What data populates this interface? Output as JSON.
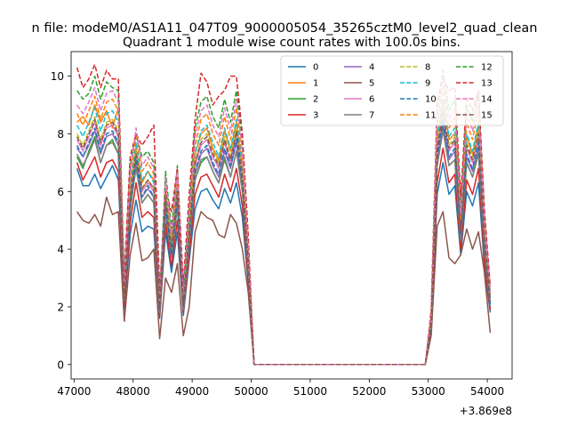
{
  "suptitle": "n file: modeM0/AS1A11_047T09_9000005054_35265cztM0_level2_quad_clean",
  "chart_data": {
    "type": "line",
    "title": "Quadrant 1 module wise count rates with 100.0s bins.",
    "xlabel": "",
    "ylabel": "",
    "offset_text": "+3.869e8",
    "xlim": [
      46950,
      54420
    ],
    "ylim": [
      -0.5,
      10.85
    ],
    "xticks": [
      47000,
      48000,
      49000,
      50000,
      51000,
      52000,
      53000,
      54000
    ],
    "yticks": [
      0,
      2,
      4,
      6,
      8,
      10
    ],
    "grid": false,
    "legend": {
      "placement": "top-right",
      "columns": 4
    },
    "x": [
      47050,
      47150,
      47250,
      47350,
      47450,
      47550,
      47650,
      47750,
      47850,
      47950,
      48050,
      48150,
      48250,
      48350,
      48450,
      48550,
      48650,
      48750,
      48850,
      48950,
      49050,
      49150,
      49250,
      49350,
      49450,
      49550,
      49650,
      49750,
      49850,
      49950,
      50050,
      50150,
      50250,
      50350,
      50450,
      50550,
      50650,
      50750,
      50850,
      50950,
      51050,
      51150,
      51250,
      51350,
      51450,
      51550,
      51650,
      51750,
      51850,
      51950,
      52050,
      52150,
      52250,
      52350,
      52450,
      52550,
      52650,
      52750,
      52850,
      52950,
      53050,
      53150,
      53250,
      53350,
      53450,
      53550,
      53650,
      53750,
      53850,
      53950,
      54050
    ],
    "series": [
      {
        "name": "0",
        "color": "#1f77b4",
        "dash": false,
        "values": [
          6.8,
          6.2,
          6.2,
          6.6,
          6.1,
          6.5,
          6.9,
          6.4,
          1.9,
          4.5,
          5.7,
          4.6,
          4.8,
          4.7,
          1.6,
          4.6,
          3.2,
          4.6,
          1.7,
          3.6,
          5.4,
          6.0,
          6.1,
          5.7,
          5.4,
          6.1,
          5.6,
          6.3,
          5.1,
          2.8,
          0,
          0,
          0,
          0,
          0,
          0,
          0,
          0,
          0,
          0,
          0,
          0,
          0,
          0,
          0,
          0,
          0,
          0,
          0,
          0,
          0,
          0,
          0,
          0,
          0,
          0,
          0,
          0,
          0,
          0,
          1.2,
          5.9,
          7.0,
          5.9,
          6.2,
          3.8,
          6.0,
          5.5,
          6.3,
          3.4,
          1.8
        ]
      },
      {
        "name": "1",
        "color": "#ff7f0e",
        "dash": false,
        "values": [
          8.4,
          8.6,
          8.3,
          9.0,
          8.4,
          8.8,
          8.2,
          8.9,
          2.4,
          6.1,
          7.5,
          6.3,
          6.7,
          6.4,
          2.0,
          6.0,
          4.1,
          6.3,
          2.2,
          4.8,
          7.3,
          8.0,
          8.2,
          7.5,
          7.1,
          8.1,
          7.4,
          8.4,
          6.8,
          3.8,
          0,
          0,
          0,
          0,
          0,
          0,
          0,
          0,
          0,
          0,
          0,
          0,
          0,
          0,
          0,
          0,
          0,
          0,
          0,
          0,
          0,
          0,
          0,
          0,
          0,
          0,
          0,
          0,
          0,
          0,
          1.6,
          7.8,
          9.2,
          7.8,
          8.0,
          4.9,
          7.9,
          7.3,
          8.3,
          4.5,
          2.3
        ]
      },
      {
        "name": "2",
        "color": "#2ca02c",
        "dash": false,
        "values": [
          7.2,
          6.8,
          7.4,
          7.9,
          7.0,
          7.6,
          7.8,
          7.3,
          2.2,
          5.3,
          6.9,
          5.6,
          5.9,
          5.6,
          1.8,
          5.3,
          3.7,
          5.5,
          1.9,
          4.2,
          6.4,
          7.0,
          7.2,
          6.7,
          6.3,
          7.1,
          6.5,
          7.4,
          6.0,
          3.3,
          0,
          0,
          0,
          0,
          0,
          0,
          0,
          0,
          0,
          0,
          0,
          0,
          0,
          0,
          0,
          0,
          0,
          0,
          0,
          0,
          0,
          0,
          0,
          0,
          0,
          0,
          0,
          0,
          0,
          0,
          1.4,
          6.9,
          8.2,
          6.9,
          7.1,
          4.3,
          7.0,
          6.5,
          7.4,
          4.0,
          2.0
        ]
      },
      {
        "name": "3",
        "color": "#d62728",
        "dash": false,
        "values": [
          7.0,
          6.4,
          6.8,
          7.2,
          6.5,
          7.0,
          7.1,
          6.7,
          2.0,
          4.9,
          6.3,
          5.1,
          5.3,
          5.1,
          1.7,
          4.9,
          3.4,
          5.0,
          1.8,
          3.8,
          5.9,
          6.5,
          6.6,
          6.2,
          5.8,
          6.6,
          6.0,
          6.8,
          5.5,
          3.0,
          0,
          0,
          0,
          0,
          0,
          0,
          0,
          0,
          0,
          0,
          0,
          0,
          0,
          0,
          0,
          0,
          0,
          0,
          0,
          0,
          0,
          0,
          0,
          0,
          0,
          0,
          0,
          0,
          0,
          0,
          1.3,
          6.3,
          7.5,
          6.3,
          6.6,
          4.0,
          6.4,
          5.9,
          6.8,
          3.6,
          1.9
        ]
      },
      {
        "name": "4",
        "color": "#9467bd",
        "dash": false,
        "values": [
          7.5,
          7.2,
          7.6,
          8.1,
          7.3,
          7.9,
          8.0,
          7.6,
          2.3,
          5.6,
          7.0,
          5.8,
          6.1,
          5.8,
          1.9,
          5.5,
          3.8,
          5.7,
          2.0,
          4.3,
          6.6,
          7.3,
          7.5,
          6.9,
          6.5,
          7.4,
          6.8,
          7.7,
          6.2,
          3.4,
          0,
          0,
          0,
          0,
          0,
          0,
          0,
          0,
          0,
          0,
          0,
          0,
          0,
          0,
          0,
          0,
          0,
          0,
          0,
          0,
          0,
          0,
          0,
          0,
          0,
          0,
          0,
          0,
          0,
          0,
          1.4,
          7.1,
          8.4,
          7.1,
          7.4,
          4.4,
          7.2,
          6.7,
          7.6,
          4.1,
          2.1
        ]
      },
      {
        "name": "5",
        "color": "#8c564b",
        "dash": false,
        "values": [
          5.3,
          5.0,
          4.9,
          5.2,
          4.8,
          5.8,
          5.2,
          5.3,
          1.5,
          3.8,
          4.9,
          3.6,
          3.7,
          4.0,
          0.9,
          3.0,
          2.5,
          3.5,
          1.0,
          2.0,
          4.6,
          5.3,
          5.1,
          5.0,
          4.5,
          4.4,
          5.2,
          4.9,
          4.0,
          2.5,
          0,
          0,
          0,
          0,
          0,
          0,
          0,
          0,
          0,
          0,
          0,
          0,
          0,
          0,
          0,
          0,
          0,
          0,
          0,
          0,
          0,
          0,
          0,
          0,
          0,
          0,
          0,
          0,
          0,
          0,
          1.0,
          4.8,
          5.3,
          3.7,
          3.5,
          3.8,
          4.7,
          4.0,
          4.6,
          3.2,
          1.1
        ]
      },
      {
        "name": "6",
        "color": "#e377c2",
        "dash": false,
        "values": [
          7.8,
          7.4,
          7.9,
          8.4,
          7.6,
          8.2,
          8.3,
          7.9,
          2.3,
          5.8,
          7.2,
          6.0,
          6.3,
          6.0,
          1.9,
          5.7,
          3.9,
          5.9,
          2.1,
          4.5,
          6.9,
          7.6,
          7.8,
          7.2,
          6.8,
          7.7,
          7.0,
          8.0,
          6.5,
          3.5,
          0,
          0,
          0,
          0,
          0,
          0,
          0,
          0,
          0,
          0,
          0,
          0,
          0,
          0,
          0,
          0,
          0,
          0,
          0,
          0,
          0,
          0,
          0,
          0,
          0,
          0,
          0,
          0,
          0,
          0,
          1.5,
          7.4,
          8.7,
          7.4,
          7.7,
          4.6,
          7.5,
          7.0,
          7.9,
          4.3,
          2.2
        ]
      },
      {
        "name": "7",
        "color": "#7f7f7f",
        "dash": false,
        "values": [
          7.3,
          6.9,
          7.3,
          7.8,
          7.0,
          7.6,
          7.7,
          7.3,
          2.2,
          5.4,
          6.8,
          5.6,
          5.9,
          5.6,
          1.8,
          5.3,
          3.7,
          5.5,
          1.9,
          4.2,
          6.4,
          7.1,
          7.2,
          6.7,
          6.3,
          7.2,
          6.5,
          7.4,
          6.0,
          3.3,
          0,
          0,
          0,
          0,
          0,
          0,
          0,
          0,
          0,
          0,
          0,
          0,
          0,
          0,
          0,
          0,
          0,
          0,
          0,
          0,
          0,
          0,
          0,
          0,
          0,
          0,
          0,
          0,
          0,
          0,
          1.4,
          6.9,
          8.1,
          6.9,
          7.1,
          4.3,
          7.0,
          6.5,
          7.3,
          4.0,
          2.0
        ]
      },
      {
        "name": "8",
        "color": "#bcbd22",
        "dash": true,
        "values": [
          8.0,
          7.6,
          8.1,
          8.6,
          7.8,
          8.4,
          8.5,
          8.1,
          2.4,
          5.9,
          7.4,
          6.1,
          6.4,
          6.1,
          2.0,
          5.8,
          4.0,
          6.0,
          2.1,
          4.6,
          7.0,
          7.8,
          8.0,
          7.4,
          7.0,
          7.9,
          7.2,
          8.2,
          6.6,
          3.6,
          0,
          0,
          0,
          0,
          0,
          0,
          0,
          0,
          0,
          0,
          0,
          0,
          0,
          0,
          0,
          0,
          0,
          0,
          0,
          0,
          0,
          0,
          0,
          0,
          0,
          0,
          0,
          0,
          0,
          0,
          1.5,
          7.6,
          8.9,
          7.6,
          7.9,
          4.7,
          7.7,
          7.2,
          8.1,
          4.4,
          2.2
        ]
      },
      {
        "name": "9",
        "color": "#17becf",
        "dash": true,
        "values": [
          8.3,
          7.9,
          8.4,
          8.9,
          8.1,
          8.7,
          8.8,
          8.4,
          2.5,
          6.1,
          7.7,
          6.4,
          6.7,
          6.3,
          2.0,
          6.0,
          4.2,
          6.2,
          2.2,
          4.8,
          7.3,
          8.1,
          8.3,
          7.7,
          7.2,
          8.2,
          7.5,
          8.5,
          6.9,
          3.7,
          0,
          0,
          0,
          0,
          0,
          0,
          0,
          0,
          0,
          0,
          0,
          0,
          0,
          0,
          0,
          0,
          0,
          0,
          0,
          0,
          0,
          0,
          0,
          0,
          0,
          0,
          0,
          0,
          0,
          0,
          1.6,
          7.9,
          9.2,
          7.9,
          8.2,
          4.8,
          8.0,
          7.4,
          8.4,
          4.6,
          2.3
        ]
      },
      {
        "name": "10",
        "color": "#1f77b4",
        "dash": true,
        "values": [
          7.6,
          7.2,
          7.7,
          8.2,
          7.4,
          8.0,
          8.1,
          7.7,
          2.3,
          5.6,
          7.1,
          5.8,
          6.2,
          5.8,
          1.9,
          5.5,
          3.8,
          5.7,
          2.0,
          4.4,
          6.7,
          7.4,
          7.6,
          7.0,
          6.6,
          7.5,
          6.9,
          7.8,
          6.3,
          3.4,
          0,
          0,
          0,
          0,
          0,
          0,
          0,
          0,
          0,
          0,
          0,
          0,
          0,
          0,
          0,
          0,
          0,
          0,
          0,
          0,
          0,
          0,
          0,
          0,
          0,
          0,
          0,
          0,
          0,
          0,
          1.4,
          7.2,
          8.5,
          7.2,
          7.5,
          4.5,
          7.3,
          6.8,
          7.7,
          4.2,
          2.1
        ]
      },
      {
        "name": "11",
        "color": "#ff7f0e",
        "dash": true,
        "values": [
          8.7,
          8.3,
          8.8,
          9.3,
          8.5,
          9.1,
          9.2,
          8.8,
          2.6,
          6.4,
          8.0,
          6.7,
          7.0,
          6.6,
          2.1,
          6.3,
          4.4,
          6.5,
          2.3,
          5.0,
          7.6,
          8.5,
          8.7,
          8.0,
          7.6,
          8.6,
          7.8,
          8.9,
          7.2,
          3.9,
          0,
          0,
          0,
          0,
          0,
          0,
          0,
          0,
          0,
          0,
          0,
          0,
          0,
          0,
          0,
          0,
          0,
          0,
          0,
          0,
          0,
          0,
          0,
          0,
          0,
          0,
          0,
          0,
          0,
          0,
          1.7,
          8.3,
          9.6,
          8.2,
          8.6,
          5.0,
          8.4,
          7.8,
          8.8,
          4.8,
          2.4
        ]
      },
      {
        "name": "12",
        "color": "#2ca02c",
        "dash": true,
        "values": [
          9.5,
          9.2,
          9.4,
          10.0,
          9.2,
          9.8,
          9.6,
          9.5,
          2.8,
          6.9,
          8.0,
          7.2,
          7.4,
          7.0,
          2.3,
          6.7,
          4.7,
          6.9,
          2.5,
          5.3,
          8.2,
          9.1,
          9.3,
          8.6,
          8.2,
          9.2,
          8.4,
          9.5,
          7.7,
          4.2,
          0,
          0,
          0,
          0,
          0,
          0,
          0,
          0,
          0,
          0,
          0,
          0,
          0,
          0,
          0,
          0,
          0,
          0,
          0,
          0,
          0,
          0,
          0,
          0,
          0,
          0,
          0,
          0,
          0,
          0,
          1.8,
          8.9,
          10.2,
          8.8,
          9.2,
          5.4,
          9.0,
          8.4,
          9.4,
          5.1,
          2.6
        ]
      },
      {
        "name": "13",
        "color": "#d62728",
        "dash": true,
        "values": [
          10.3,
          9.6,
          9.9,
          10.4,
          9.6,
          10.2,
          9.9,
          9.9,
          3.0,
          7.2,
          8.0,
          7.6,
          7.9,
          8.3,
          2.6,
          6.0,
          5.3,
          6.8,
          2.8,
          5.9,
          8.5,
          10.1,
          9.8,
          9.0,
          9.3,
          9.5,
          10.0,
          10.0,
          8.0,
          4.5,
          0,
          0,
          0,
          0,
          0,
          0,
          0,
          0,
          0,
          0,
          0,
          0,
          0,
          0,
          0,
          0,
          0,
          0,
          0,
          0,
          0,
          0,
          0,
          0,
          0,
          0,
          0,
          0,
          0,
          0,
          1.9,
          9.1,
          9.9,
          9.5,
          9.6,
          5.8,
          9.3,
          8.8,
          9.5,
          5.4,
          2.7
        ]
      },
      {
        "name": "14",
        "color": "#e377c2",
        "dash": true,
        "values": [
          9.0,
          8.7,
          9.1,
          9.6,
          8.8,
          9.4,
          9.5,
          9.1,
          2.7,
          6.6,
          8.2,
          6.9,
          7.2,
          6.8,
          2.2,
          6.5,
          4.5,
          6.7,
          2.4,
          5.2,
          7.9,
          8.8,
          9.0,
          8.3,
          7.9,
          8.9,
          8.1,
          9.2,
          7.4,
          4.0,
          0,
          0,
          0,
          0,
          0,
          0,
          0,
          0,
          0,
          0,
          0,
          0,
          0,
          0,
          0,
          0,
          0,
          0,
          0,
          0,
          0,
          0,
          0,
          0,
          0,
          0,
          0,
          0,
          0,
          0,
          1.7,
          8.6,
          9.9,
          8.5,
          8.9,
          5.2,
          8.7,
          8.1,
          9.1,
          5.0,
          2.5
        ]
      },
      {
        "name": "15",
        "color": "#8c564b",
        "dash": true,
        "values": [
          7.9,
          7.5,
          8.0,
          8.5,
          7.7,
          8.3,
          8.4,
          8.0,
          2.3,
          5.8,
          7.3,
          6.1,
          6.4,
          6.1,
          2.0,
          5.8,
          4.0,
          6.0,
          2.1,
          4.6,
          7.0,
          7.7,
          7.9,
          7.3,
          6.9,
          7.8,
          7.1,
          8.1,
          6.5,
          3.6,
          0,
          0,
          0,
          0,
          0,
          0,
          0,
          0,
          0,
          0,
          0,
          0,
          0,
          0,
          0,
          0,
          0,
          0,
          0,
          0,
          0,
          0,
          0,
          0,
          0,
          0,
          0,
          0,
          0,
          0,
          1.5,
          7.5,
          8.8,
          7.5,
          7.8,
          4.6,
          7.6,
          7.1,
          8.0,
          4.4,
          2.2
        ]
      }
    ]
  }
}
